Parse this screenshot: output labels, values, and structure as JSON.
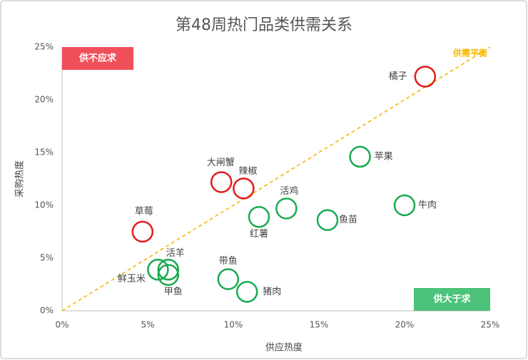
{
  "chart_data": {
    "type": "scatter",
    "title": "第48周热门品类供需关系",
    "x_label": "供应热度",
    "y_label": "采购热度",
    "xlim": [
      0,
      25
    ],
    "ylim": [
      0,
      25
    ],
    "xticks": [
      {
        "value": 0,
        "label": "0%"
      },
      {
        "value": 5,
        "label": "5%"
      },
      {
        "value": 10,
        "label": "10%"
      },
      {
        "value": 15,
        "label": "15%"
      },
      {
        "value": 20,
        "label": "20%"
      },
      {
        "value": 25,
        "label": "25%"
      }
    ],
    "yticks": [
      {
        "value": 0,
        "label": "0%"
      },
      {
        "value": 5,
        "label": "5%"
      },
      {
        "value": 10,
        "label": "10%"
      },
      {
        "value": 15,
        "label": "15%"
      },
      {
        "value": 20,
        "label": "20%"
      },
      {
        "value": 25,
        "label": "25%"
      }
    ],
    "balance_line": {
      "label": "供需平衡",
      "color": "#f5b800"
    },
    "series": [
      {
        "name": "供不应求",
        "color": "#e31b1b",
        "box_color": "#f0505a",
        "labels": [
          "橘子",
          "大闸蟹",
          "辣椒",
          "草莓"
        ],
        "x": [
          21.2,
          9.3,
          10.6,
          4.7
        ],
        "values": [
          22.2,
          12.2,
          11.6,
          7.5
        ]
      },
      {
        "name": "供大于求",
        "color": "#1aaa50",
        "box_color": "#4cc27a",
        "labels": [
          "苹果",
          "牛肉",
          "鱼苗",
          "活鸡",
          "红薯",
          "活羊",
          "鲜玉米",
          "甲鱼",
          "带鱼",
          "猪肉"
        ],
        "x": [
          17.4,
          20.0,
          15.5,
          13.1,
          11.5,
          6.2,
          5.6,
          6.2,
          9.7,
          10.8
        ],
        "values": [
          14.6,
          10.0,
          8.6,
          9.7,
          8.9,
          3.9,
          3.9,
          3.4,
          3.0,
          1.8
        ]
      }
    ]
  }
}
